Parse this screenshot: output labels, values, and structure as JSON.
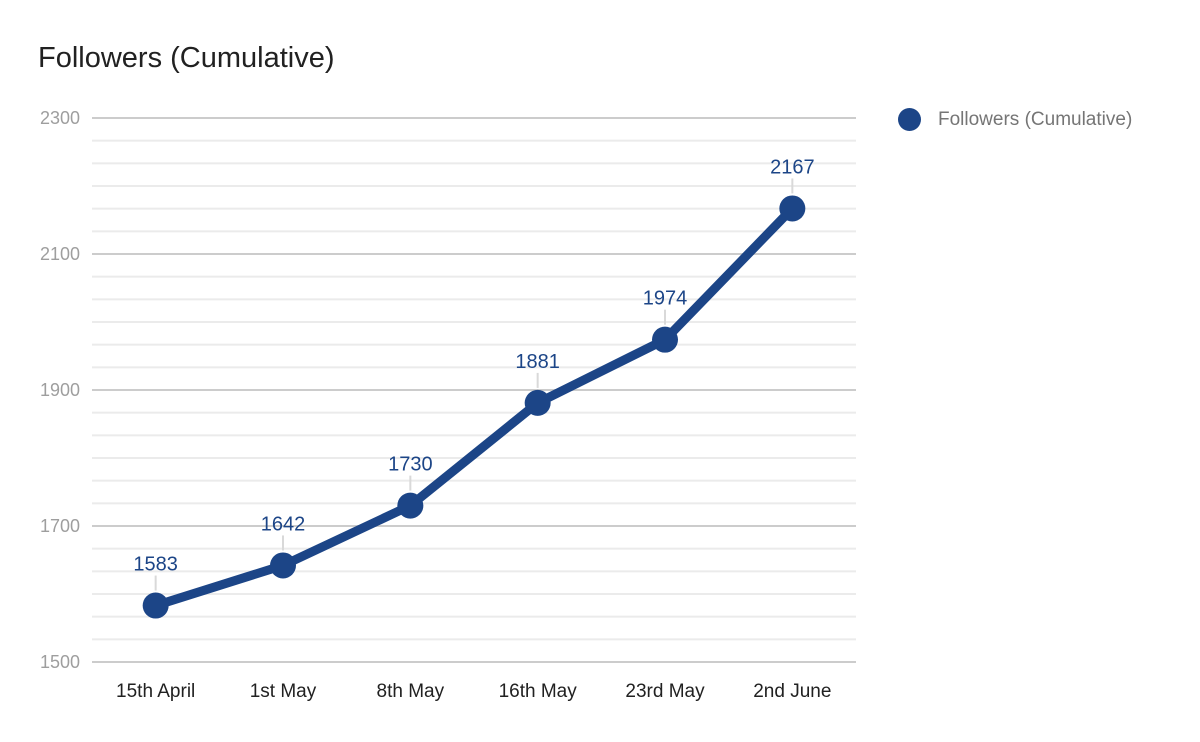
{
  "title": "Followers (Cumulative)",
  "legend": {
    "label": "Followers (Cumulative)",
    "marker_color": "#1c4587"
  },
  "chart_data": {
    "type": "line",
    "title": "Followers (Cumulative)",
    "categories": [
      "15th April",
      "1st May",
      "8th May",
      "16th May",
      "23rd May",
      "2nd June"
    ],
    "series": [
      {
        "name": "Followers (Cumulative)",
        "values": [
          1583,
          1642,
          1730,
          1881,
          1974,
          2167
        ],
        "color": "#1c4587"
      }
    ],
    "data_labels": [
      1583,
      1642,
      1730,
      1881,
      1974,
      2167
    ],
    "xlabel": "",
    "ylabel": "",
    "ylim": [
      1500,
      2300
    ],
    "y_ticks": [
      1500,
      1700,
      1900,
      2100,
      2300
    ],
    "minor_gridlines_between_majors": 5,
    "grid": true,
    "legend_position": "right"
  },
  "colors": {
    "series": "#1c4587",
    "major_gridline": "#cccccc",
    "minor_gridline": "#ebebeb",
    "label_stem": "#d9d9d9",
    "y_tick_label": "#9e9e9e",
    "x_tick_label": "#212121",
    "value_label": "#1c4587",
    "title": "#212121",
    "legend_text": "#757575",
    "background": "#ffffff"
  }
}
